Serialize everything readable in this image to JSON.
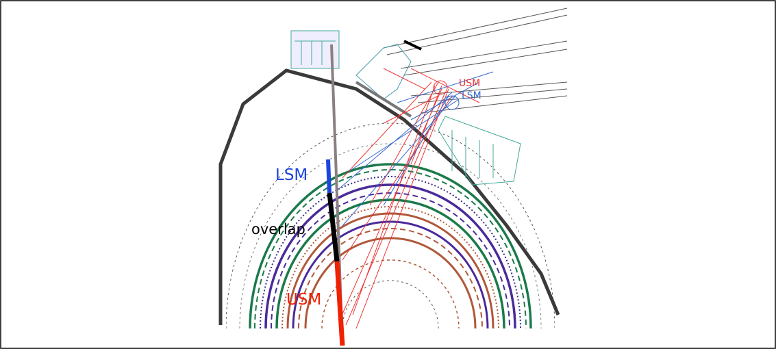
{
  "labels": {
    "lsm_sightline": "LSM",
    "overlap": "overlap",
    "usm_sightline": "USM",
    "usm_port": "USM",
    "lsm_port": "LSM"
  }
}
